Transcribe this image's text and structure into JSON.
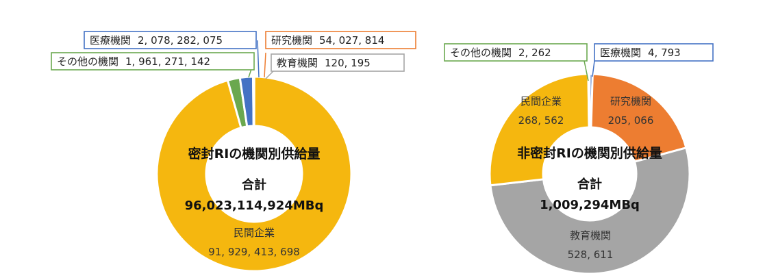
{
  "chart_data": [
    {
      "type": "pie",
      "title": "密封RIの機関別供給量",
      "total_label": "合計",
      "total_value": "96,023,114,924MBq",
      "colors": {
        "民間企業": "#f5b70f",
        "その他の機関": "#6aa84f",
        "医療機関": "#4472c4",
        "研究機関": "#ed7d31",
        "教育機関": "#a5a5a5"
      },
      "slices": [
        {
          "name": "民間企業",
          "value": 91929413698,
          "label_name": "民間企業",
          "label_value": "91, 929, 413, 698",
          "label_style": "inside"
        },
        {
          "name": "その他の機関",
          "value": 1961271142,
          "label_name": "その他の機関",
          "label_value": "1, 961, 271, 142",
          "label_style": "callout"
        },
        {
          "name": "医療機関",
          "value": 2078282075,
          "label_name": "医療機関",
          "label_value": "2, 078, 282, 075",
          "label_style": "callout"
        },
        {
          "name": "研究機関",
          "value": 54027814,
          "label_name": "研究機関",
          "label_value": "54, 027, 814",
          "label_style": "callout"
        },
        {
          "name": "教育機関",
          "value": 120195,
          "label_name": "教育機関",
          "label_value": "120, 195",
          "label_style": "callout"
        }
      ]
    },
    {
      "type": "pie",
      "title": "非密封RIの機関別供給量",
      "total_label": "合計",
      "total_value": "1,009,294MBq",
      "colors": {
        "民間企業": "#f5b70f",
        "その他の機関": "#6aa84f",
        "医療機関": "#4472c4",
        "研究機関": "#ed7d31",
        "教育機関": "#a5a5a5"
      },
      "slices": [
        {
          "name": "医療機関",
          "value": 4793,
          "label_name": "医療機関",
          "label_value": "4, 793",
          "label_style": "callout"
        },
        {
          "name": "研究機関",
          "value": 205066,
          "label_name": "研究機関",
          "label_value": "205, 066",
          "label_style": "inside"
        },
        {
          "name": "教育機関",
          "value": 528611,
          "label_name": "教育機関",
          "label_value": "528, 611",
          "label_style": "inside"
        },
        {
          "name": "民間企業",
          "value": 268562,
          "label_name": "民間企業",
          "label_value": "268, 562",
          "label_style": "inside"
        },
        {
          "name": "その他の機関",
          "value": 2262,
          "label_name": "その他の機関",
          "label_value": "2, 262",
          "label_style": "callout"
        }
      ]
    }
  ]
}
